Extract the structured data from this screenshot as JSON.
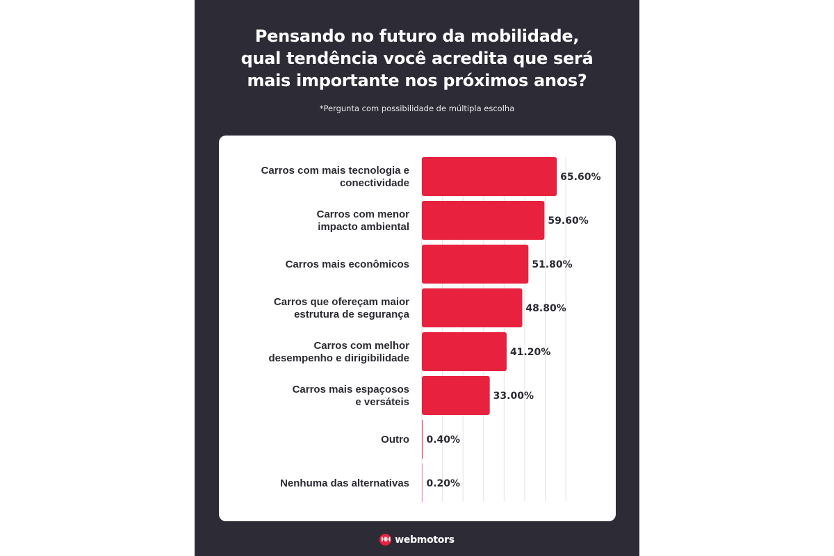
{
  "header": {
    "title_lines": [
      "Pensando no futuro da mobilidade,",
      "qual tendência você acredita que será",
      "mais importante nos próximos anos?"
    ],
    "subtitle": "*Pergunta com possibilidade de múltipla escolha"
  },
  "footer": {
    "logo_mark": "HH",
    "brand": "webmotors"
  },
  "colors": {
    "background": "#2d2b35",
    "bar": "#e8213f",
    "text": "#2b2a33",
    "grid": "#e6e6e6"
  },
  "chart_data": {
    "type": "bar",
    "orientation": "horizontal",
    "title": "Pensando no futuro da mobilidade, qual tendência você acredita que será mais importante nos próximos anos?",
    "subtitle": "*Pergunta com possibilidade de múltipla escolha",
    "xlabel": "",
    "ylabel": "",
    "xlim": [
      0,
      70
    ],
    "grid": true,
    "grid_step": 10,
    "legend": "none",
    "categories": [
      [
        "Carros com mais tecnologia e",
        "conectividade"
      ],
      [
        "Carros com menor",
        "impacto ambiental"
      ],
      [
        "Carros mais econômicos"
      ],
      [
        "Carros que ofereçam maior",
        "estrutura de segurança"
      ],
      [
        "Carros com melhor",
        "desempenho e dirigibilidade"
      ],
      [
        "Carros mais espaçosos",
        "e versáteis"
      ],
      [
        "Outro"
      ],
      [
        "Nenhuma das alternativas"
      ]
    ],
    "values": [
      65.6,
      59.6,
      51.8,
      48.8,
      41.2,
      33.0,
      0.4,
      0.2
    ],
    "value_labels": [
      "65.60%",
      "59.60%",
      "51.80%",
      "48.80%",
      "41.20%",
      "33.00%",
      "0.40%",
      "0.20%"
    ]
  }
}
